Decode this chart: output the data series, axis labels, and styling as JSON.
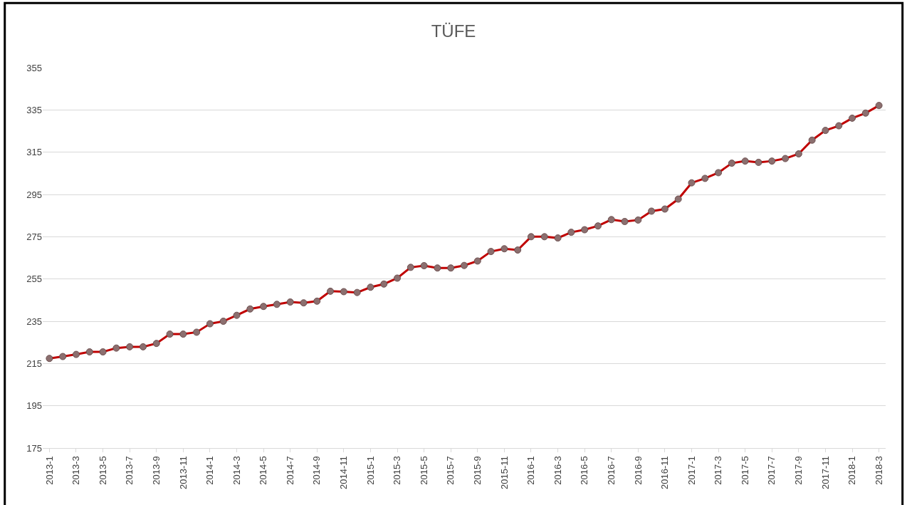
{
  "chart_data": {
    "type": "line",
    "title": "TÜFE",
    "categories": [
      "2013-1",
      null,
      "2013-3",
      null,
      "2013-5",
      null,
      "2013-7",
      null,
      "2013-9",
      null,
      "2013-11",
      null,
      "2014-1",
      null,
      "2014-3",
      null,
      "2014-5",
      null,
      "2014-7",
      null,
      "2014-9",
      null,
      "2014-11",
      null,
      "2015-1",
      null,
      "2015-3",
      null,
      "2015-5",
      null,
      "2015-7",
      null,
      "2015-9",
      null,
      "2015-11",
      null,
      "2016-1",
      null,
      "2016-3",
      null,
      "2016-5",
      null,
      "2016-7",
      null,
      "2016-9",
      null,
      "2016-11",
      null,
      "2017-1",
      null,
      "2017-3",
      null,
      "2017-5",
      null,
      "2017-7",
      null,
      "2017-9",
      null,
      "2017-11",
      null,
      "2018-1",
      null,
      "2018-3"
    ],
    "series": [
      {
        "color": "#c00000",
        "values": [
          217.4,
          218.3,
          219.3,
          220.5,
          220.5,
          222.3,
          222.9,
          222.9,
          224.5,
          228.9,
          228.9,
          229.8,
          233.8,
          235.0,
          237.8,
          240.8,
          242.0,
          243.0,
          244.1,
          243.7,
          244.5,
          249.2,
          249.0,
          248.6,
          251.1,
          252.6,
          255.4,
          260.5,
          261.3,
          260.2,
          260.2,
          261.4,
          263.5,
          268.0,
          269.3,
          268.7,
          275.0,
          275.0,
          274.4,
          277.1,
          278.3,
          280.1,
          283.1,
          282.2,
          282.9,
          287.1,
          288.1,
          292.8,
          300.5,
          302.6,
          305.3,
          309.8,
          310.8,
          310.2,
          310.8,
          312.0,
          314.2,
          320.7,
          325.3,
          327.5,
          331.1,
          333.5,
          337.1
        ]
      }
    ],
    "ylim": [
      175,
      355
    ],
    "yticks": [
      175,
      195,
      215,
      235,
      255,
      275,
      295,
      315,
      335,
      355
    ],
    "grid": "y",
    "marker": "circle",
    "line_style": "solid"
  }
}
